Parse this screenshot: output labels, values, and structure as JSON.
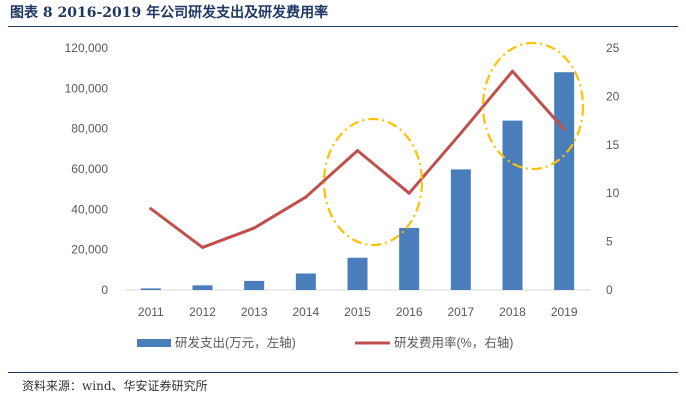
{
  "figure_title": "图表 8   2016-2019 年公司研发支出及研发费用率",
  "source_note": "资料来源：wind、华安证券研究所",
  "colors": {
    "bar": "#4a7ebb",
    "line": "#c0504d",
    "highlight": "#ffc000",
    "title": "#1f3864"
  },
  "chart_data": {
    "type": "bar",
    "title": "",
    "categories": [
      "2011",
      "2012",
      "2013",
      "2014",
      "2015",
      "2016",
      "2017",
      "2018",
      "2019"
    ],
    "series": [
      {
        "name": "研发支出(万元，左轴)",
        "type": "bar",
        "axis": "left",
        "values": [
          800,
          2300,
          4500,
          8200,
          16000,
          30800,
          59800,
          84000,
          108000
        ]
      },
      {
        "name": "研发费用率(%，右轴)",
        "type": "line",
        "axis": "right",
        "values": [
          8.4,
          4.4,
          6.4,
          9.6,
          14.4,
          10.0,
          16.2,
          22.6,
          16.6
        ]
      }
    ],
    "left_axis": {
      "min": 0,
      "max": 120000,
      "ticks": [
        "0",
        "20,000",
        "40,000",
        "60,000",
        "80,000",
        "100,000",
        "120,000"
      ]
    },
    "right_axis": {
      "min": 0,
      "max": 25,
      "ticks": [
        "0",
        "5",
        "10",
        "15",
        "20",
        "25"
      ]
    },
    "legend_position": "bottom",
    "grid": false,
    "annotations": [
      {
        "shape": "dash-dot ellipse",
        "around": [
          "2015",
          "2016"
        ]
      },
      {
        "shape": "dash-dot ellipse",
        "around": [
          "2018",
          "2019"
        ]
      }
    ]
  }
}
